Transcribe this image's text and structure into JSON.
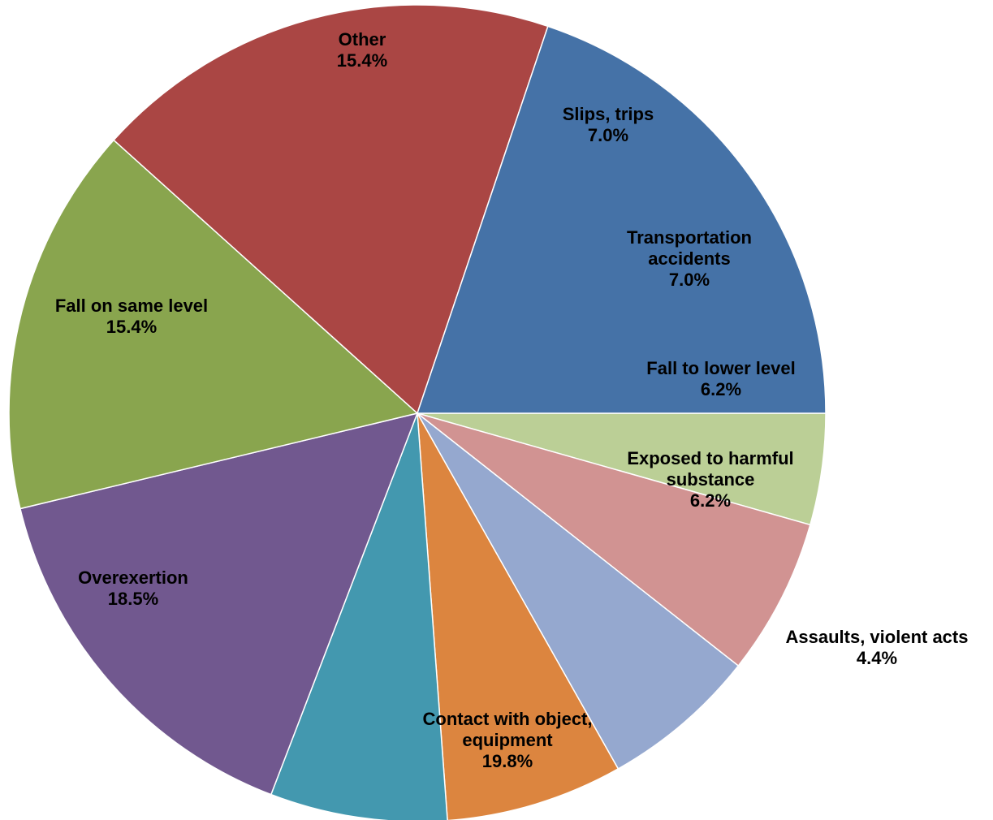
{
  "chart_data": {
    "type": "pie",
    "title": "",
    "start_angle_deg": 0,
    "direction": "clockwise",
    "slices": [
      {
        "label_lines": [
          "Assaults, violent acts"
        ],
        "percent_label": "4.4%",
        "value": 4.4,
        "color": "#BBCF96"
      },
      {
        "label_lines": [
          "Exposed to harmful",
          "substance"
        ],
        "percent_label": "6.2%",
        "value": 6.2,
        "color": "#D19392"
      },
      {
        "label_lines": [
          "Fall to lower level"
        ],
        "percent_label": "6.2%",
        "value": 6.2,
        "color": "#95A8CF"
      },
      {
        "label_lines": [
          "Transportation",
          "accidents"
        ],
        "percent_label": "7.0%",
        "value": 7.0,
        "color": "#DC853F"
      },
      {
        "label_lines": [
          "Slips, trips"
        ],
        "percent_label": "7.0%",
        "value": 7.0,
        "color": "#4398AF"
      },
      {
        "label_lines": [
          "Other"
        ],
        "percent_label": "15.4%",
        "value": 15.4,
        "color": "#71588F"
      },
      {
        "label_lines": [
          "Fall on same level"
        ],
        "percent_label": "15.4%",
        "value": 15.4,
        "color": "#89A54E"
      },
      {
        "label_lines": [
          "Overexertion"
        ],
        "percent_label": "18.5%",
        "value": 18.5,
        "color": "#AA4644"
      },
      {
        "label_lines": [
          "Contact with object,",
          "equipment"
        ],
        "percent_label": "19.8%",
        "value": 19.8,
        "color": "#4572A7"
      }
    ]
  }
}
